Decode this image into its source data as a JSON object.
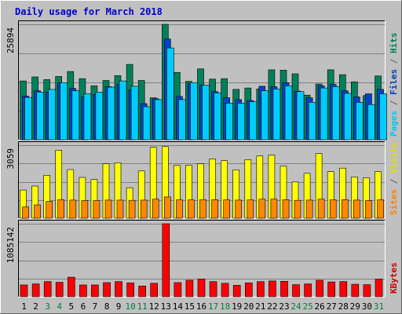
{
  "chart_data": {
    "type": "bar",
    "title": "Daily usage for March 2018",
    "days": [
      "1",
      "2",
      "3",
      "4",
      "5",
      "6",
      "7",
      "8",
      "9",
      "10",
      "11",
      "12",
      "13",
      "14",
      "15",
      "16",
      "17",
      "18",
      "19",
      "20",
      "21",
      "22",
      "23",
      "24",
      "25",
      "26",
      "27",
      "28",
      "29",
      "30",
      "31"
    ],
    "weekend_days": [
      "3",
      "4",
      "10",
      "11",
      "17",
      "18",
      "24",
      "25",
      "31"
    ],
    "panels": [
      {
        "id": "hits",
        "ymax": 25894,
        "ymax_label": "25894",
        "label_parts": [
          {
            "text": "Pages",
            "color": "#00c8f0"
          },
          {
            "text": " / ",
            "color": "#606060"
          },
          {
            "text": "Files",
            "color": "#0040c0"
          },
          {
            "text": " / ",
            "color": "#606060"
          },
          {
            "text": "Hits",
            "color": "#008060"
          }
        ],
        "series": [
          {
            "name": "Hits",
            "color": "#00805a",
            "values": [
              13200,
              14100,
              13500,
              14200,
              15300,
              13700,
              12100,
              13300,
              14400,
              16900,
              13300,
              9400,
              25894,
              15100,
              13100,
              15900,
              13600,
              13700,
              11300,
              11600,
              11400,
              15700,
              15600,
              14800,
              10000,
              12500,
              15700,
              14600,
              13000,
              9900,
              14300
            ]
          },
          {
            "name": "Files",
            "color": "#0044cc",
            "values": [
              9800,
              11000,
              10700,
              12800,
              11500,
              9600,
              10100,
              11900,
              12500,
              11200,
              8100,
              9200,
              22600,
              9700,
              12700,
              12200,
              10800,
              9400,
              9000,
              8800,
              12000,
              11900,
              12800,
              10900,
              9400,
              12100,
              12400,
              11000,
              9600,
              10300,
              11300
            ]
          },
          {
            "name": "Pages",
            "color": "#00ccff",
            "values": [
              9500,
              10700,
              11300,
              12800,
              11000,
              10300,
              10700,
              11800,
              13200,
              12000,
              7400,
              9000,
              20600,
              9000,
              12800,
              12200,
              10500,
              8200,
              8200,
              8500,
              11000,
              11400,
              12100,
              10800,
              8400,
              11600,
              11900,
              10400,
              8400,
              7900,
              10300
            ]
          }
        ]
      },
      {
        "id": "visits",
        "ymax": 3059,
        "ymax_label": "3059",
        "label_parts": [
          {
            "text": "Sites",
            "color": "#ff8000"
          },
          {
            "text": " / ",
            "color": "#606060"
          },
          {
            "text": "Visits",
            "color": "#e0e000"
          }
        ],
        "series": [
          {
            "name": "Visits",
            "color": "#ffff00",
            "values": [
              1180,
              1350,
              1800,
              2850,
              2040,
              1710,
              1620,
              2280,
              2320,
              1280,
              1980,
              2970,
              3000,
              2210,
              2220,
              2280,
              2480,
              2410,
              2030,
              2450,
              2610,
              2640,
              2180,
              1520,
              1880,
              2710,
              1950,
              2100,
              1730,
              1690,
              1960
            ]
          },
          {
            "name": "Sites",
            "color": "#ff8800",
            "values": [
              470,
              560,
              700,
              780,
              760,
              740,
              740,
              760,
              760,
              750,
              760,
              800,
              890,
              770,
              770,
              780,
              780,
              770,
              760,
              770,
              800,
              800,
              780,
              750,
              760,
              800,
              770,
              780,
              760,
              740,
              770
            ]
          }
        ]
      },
      {
        "id": "kbytes",
        "ymax": 1085142,
        "ymax_label": "1085142",
        "label_parts": [
          {
            "text": "KBytes",
            "color": "#cc0000"
          }
        ],
        "series": [
          {
            "name": "KBytes",
            "color": "#ff0000",
            "values": [
              175000,
              190000,
              225000,
              215000,
              290000,
              175000,
              175000,
              210000,
              225000,
              205000,
              160000,
              200000,
              1085142,
              210000,
              245000,
              265000,
              225000,
              200000,
              170000,
              205000,
              225000,
              235000,
              230000,
              180000,
              190000,
              245000,
              220000,
              225000,
              185000,
              180000,
              260000
            ]
          }
        ]
      }
    ]
  }
}
